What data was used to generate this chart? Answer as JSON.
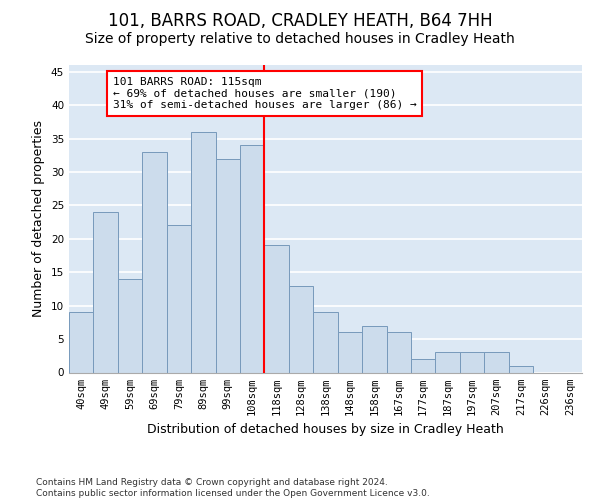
{
  "title": "101, BARRS ROAD, CRADLEY HEATH, B64 7HH",
  "subtitle": "Size of property relative to detached houses in Cradley Heath",
  "xlabel": "Distribution of detached houses by size in Cradley Heath",
  "ylabel": "Number of detached properties",
  "categories": [
    "40sqm",
    "49sqm",
    "59sqm",
    "69sqm",
    "79sqm",
    "89sqm",
    "99sqm",
    "108sqm",
    "118sqm",
    "128sqm",
    "138sqm",
    "148sqm",
    "158sqm",
    "167sqm",
    "177sqm",
    "187sqm",
    "197sqm",
    "207sqm",
    "217sqm",
    "226sqm",
    "236sqm"
  ],
  "values": [
    9,
    24,
    14,
    33,
    22,
    36,
    32,
    34,
    19,
    13,
    9,
    6,
    7,
    6,
    2,
    3,
    3,
    3,
    1,
    0,
    0
  ],
  "bar_color": "#ccdcec",
  "bar_edge_color": "#7799bb",
  "property_line_index": 7.5,
  "annotation_text": "101 BARRS ROAD: 115sqm\n← 69% of detached houses are smaller (190)\n31% of semi-detached houses are larger (86) →",
  "annotation_box_color": "white",
  "annotation_box_edge_color": "red",
  "property_line_color": "red",
  "ylim": [
    0,
    46
  ],
  "yticks": [
    0,
    5,
    10,
    15,
    20,
    25,
    30,
    35,
    40,
    45
  ],
  "background_color": "#dce8f4",
  "footer_text": "Contains HM Land Registry data © Crown copyright and database right 2024.\nContains public sector information licensed under the Open Government Licence v3.0.",
  "title_fontsize": 12,
  "subtitle_fontsize": 10,
  "xlabel_fontsize": 9,
  "ylabel_fontsize": 9,
  "tick_fontsize": 7.5,
  "annotation_fontsize": 8,
  "footer_fontsize": 6.5
}
